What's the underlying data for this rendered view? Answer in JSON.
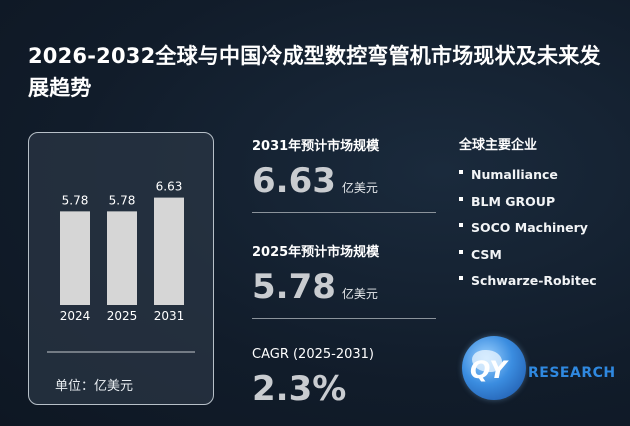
{
  "title": "2026-2032全球与中国冷成型数控弯管机市场现状及未来发展趋势",
  "chart_data": {
    "type": "bar",
    "categories": [
      "2024",
      "2025",
      "2031"
    ],
    "values": [
      5.78,
      5.78,
      6.63
    ],
    "value_labels": [
      "5.78",
      "5.78",
      "6.63"
    ],
    "unit_label": "单位：亿美元",
    "colors": {
      "bar": "#d6d6d6",
      "axis": "#c3c8cd"
    }
  },
  "stats": {
    "s2031": {
      "label": "2031年预计市场规模",
      "value": "6.63",
      "unit": "亿美元"
    },
    "s2025": {
      "label": "2025年预计市场规模",
      "value": "5.78",
      "unit": "亿美元"
    },
    "cagr": {
      "label": "CAGR (2025-2031)",
      "value": "2.3%"
    }
  },
  "companies": {
    "title": "全球主要企业",
    "items": [
      "Numalliance",
      "BLM GROUP",
      "SOCO Machinery",
      "CSM",
      "Schwarze-Robitec"
    ]
  },
  "logo": {
    "qy": "QY",
    "research": "RESEARCH",
    "icon": "globe-icon"
  }
}
